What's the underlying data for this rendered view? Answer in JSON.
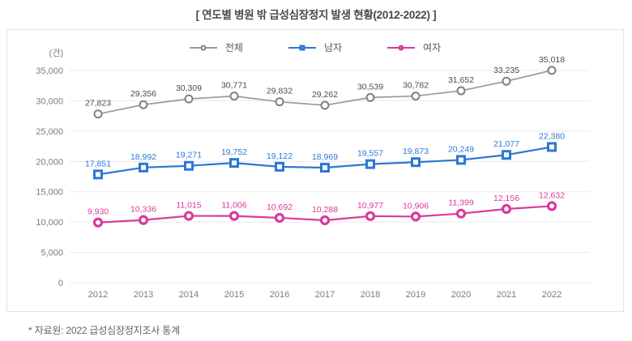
{
  "title": "[ 연도별 병원 밖 급성심장정지 발생 현황(2012-2022) ]",
  "footnote": "* 자료원: 2022 급성심장정지조사 통계",
  "colors": {
    "grid": "#e9e9ed",
    "axis_text": "#797c80",
    "card_border": "#e4e4e8",
    "title_text": "#47494c",
    "footnote_text": "#5f6368"
  },
  "chart_data": {
    "type": "line",
    "title": "연도별 병원 밖 급성심장정지 발생 현황(2012-2022)",
    "unit_label": "(건)",
    "x": [
      2012,
      2013,
      2014,
      2015,
      2016,
      2017,
      2018,
      2019,
      2020,
      2021,
      2022
    ],
    "ylim": [
      0,
      35000
    ],
    "ytick_step": 5000,
    "grid": true,
    "legend_position": "top",
    "series": [
      {
        "name": "전체",
        "marker": "circle",
        "color": "#9a9a9a",
        "marker_color": "#808080",
        "label_color": "#4d4d4d",
        "values": [
          27823,
          29356,
          30309,
          30771,
          29832,
          29262,
          30539,
          30782,
          31652,
          33235,
          35018
        ]
      },
      {
        "name": "남자",
        "marker": "square",
        "color": "#2b78d4",
        "marker_color": "#2b78d4",
        "label_color": "#2b78d4",
        "values": [
          17851,
          18992,
          19271,
          19752,
          19122,
          18969,
          19557,
          19873,
          20249,
          21077,
          22380
        ]
      },
      {
        "name": "여자",
        "marker": "circle",
        "color": "#d93a9b",
        "marker_color": "#d93a9b",
        "label_color": "#d93a9b",
        "values": [
          9930,
          10336,
          11015,
          11006,
          10692,
          10288,
          10977,
          10906,
          11399,
          12156,
          12632
        ]
      }
    ]
  }
}
